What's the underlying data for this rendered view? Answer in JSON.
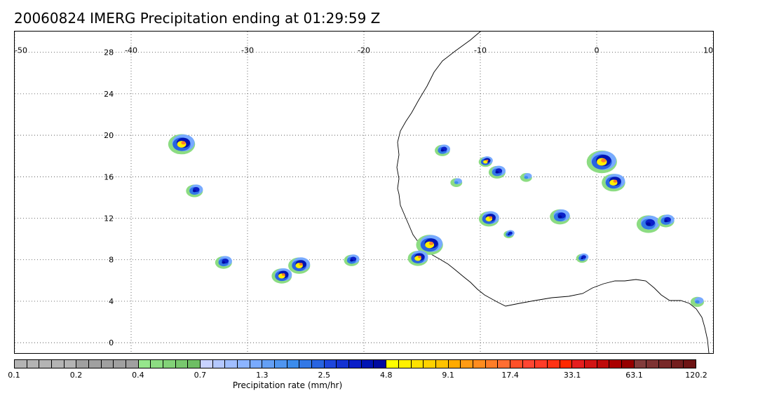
{
  "title": "20060824 IMERG Precipitation ending at 01:29:59 Z",
  "map": {
    "lon_labels": [
      "-50",
      "-40",
      "-30",
      "-20",
      "-10",
      "0",
      "10"
    ],
    "lat_labels": [
      "28",
      "24",
      "20",
      "16",
      "12",
      "8",
      "4",
      "0"
    ],
    "grid": "dotted",
    "lon_range": [
      -50,
      10
    ],
    "lat_range": [
      -1,
      30
    ]
  },
  "colorbar": {
    "unit_label": "Precipitation rate (mm/hr)",
    "tick_labels": [
      "0.1",
      "0.2",
      "0.4",
      "0.7",
      "1.3",
      "2.5",
      "4.8",
      "9.1",
      "17.4",
      "33.1",
      "63.1",
      "120.2"
    ],
    "colors": [
      "#b4b4b4",
      "#b4b4b4",
      "#b4b4b4",
      "#b4b4b4",
      "#b4b4b4",
      "#a0a0a0",
      "#a0a0a0",
      "#a0a0a0",
      "#a0a0a0",
      "#a0a0a0",
      "#96e68c",
      "#8cdc82",
      "#82d278",
      "#78c86e",
      "#6ebe64",
      "#c8d2ff",
      "#b4c8ff",
      "#a0beff",
      "#8cb4ff",
      "#78aaff",
      "#64a0f5",
      "#5096f0",
      "#3c8ceb",
      "#3278e6",
      "#2864e1",
      "#1e46dc",
      "#1432d2",
      "#0a1ec8",
      "#0014b4",
      "#000aa0",
      "#ffff00",
      "#fff000",
      "#ffe100",
      "#ffd200",
      "#ffc300",
      "#ffaa00",
      "#ff9b14",
      "#ff8c1e",
      "#ff7d28",
      "#ff6e32",
      "#ff5028",
      "#ff4632",
      "#ff3c28",
      "#ff3214",
      "#ff2800",
      "#e61e1e",
      "#d21414",
      "#be0a0a",
      "#aa0000",
      "#960000",
      "#823c3c",
      "#7d3232",
      "#782828",
      "#731e1e",
      "#6e1414"
    ]
  },
  "precip_cells": [
    {
      "lon": -35.6,
      "lat": 19.2,
      "r": 16,
      "level": "heavy"
    },
    {
      "lon": -34.5,
      "lat": 14.7,
      "r": 10,
      "level": "moderate"
    },
    {
      "lon": -32.0,
      "lat": 7.8,
      "r": 10,
      "level": "moderate"
    },
    {
      "lon": -27.0,
      "lat": 6.5,
      "r": 12,
      "level": "heavy"
    },
    {
      "lon": -25.5,
      "lat": 7.5,
      "r": 13,
      "level": "heavy"
    },
    {
      "lon": -21.0,
      "lat": 8.0,
      "r": 9,
      "level": "moderate"
    },
    {
      "lon": -14.3,
      "lat": 9.5,
      "r": 16,
      "level": "heavy"
    },
    {
      "lon": -15.3,
      "lat": 8.2,
      "r": 12,
      "level": "heavy"
    },
    {
      "lon": -13.2,
      "lat": 18.6,
      "r": 9,
      "level": "moderate"
    },
    {
      "lon": -9.5,
      "lat": 17.5,
      "r": 8,
      "level": "heavy"
    },
    {
      "lon": -8.5,
      "lat": 16.5,
      "r": 10,
      "level": "moderate"
    },
    {
      "lon": -9.2,
      "lat": 12.0,
      "r": 12,
      "level": "heavy"
    },
    {
      "lon": -7.5,
      "lat": 10.5,
      "r": 6,
      "level": "moderate"
    },
    {
      "lon": -3.1,
      "lat": 12.2,
      "r": 12,
      "level": "moderate"
    },
    {
      "lon": 0.5,
      "lat": 17.5,
      "r": 18,
      "level": "heavy"
    },
    {
      "lon": 1.5,
      "lat": 15.5,
      "r": 14,
      "level": "heavy"
    },
    {
      "lon": 4.5,
      "lat": 11.5,
      "r": 14,
      "level": "moderate"
    },
    {
      "lon": 6.0,
      "lat": 11.8,
      "r": 10,
      "level": "moderate"
    },
    {
      "lon": -1.2,
      "lat": 8.2,
      "r": 7,
      "level": "moderate"
    },
    {
      "lon": 8.7,
      "lat": 4.0,
      "r": 8,
      "level": "light"
    },
    {
      "lon": -12.0,
      "lat": 15.5,
      "r": 7,
      "level": "light"
    },
    {
      "lon": -6.0,
      "lat": 16.0,
      "r": 7,
      "level": "light"
    }
  ]
}
